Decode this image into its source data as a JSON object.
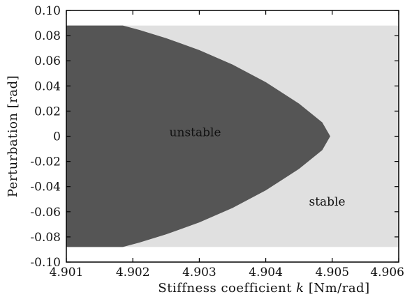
{
  "chart_data": {
    "type": "area",
    "xlabel_parts": {
      "pre": "Stiffness coefficient ",
      "var": "k",
      "post": " [Nm/rad]"
    },
    "ylabel": "Perturbation  [rad]",
    "xlim": [
      4.901,
      4.906
    ],
    "ylim": [
      -0.1,
      0.1
    ],
    "x_ticks": [
      4.901,
      4.902,
      4.903,
      4.904,
      4.905,
      4.906
    ],
    "x_tick_labels": [
      "4.901",
      "4.902",
      "4.903",
      "4.904",
      "4.905",
      "4.906"
    ],
    "y_ticks": [
      0.1,
      0.08,
      0.06,
      0.04,
      0.02,
      0,
      -0.02,
      -0.04,
      -0.06,
      -0.08,
      -0.1
    ],
    "y_tick_labels": [
      "0.10",
      "0.08",
      "0.06",
      "0.04",
      "0.02",
      "0",
      "-0.02",
      "-0.04",
      "-0.06",
      "-0.08",
      "-0.10"
    ],
    "grid": false,
    "stable_region": {
      "label": "stable",
      "label_pos": [
        4.90465,
        -0.055
      ],
      "y_range": [
        -0.088,
        0.088
      ],
      "x_range": [
        4.901,
        4.906
      ],
      "color": "#e0e0e0"
    },
    "unstable_region": {
      "label": "unstable",
      "label_pos": [
        4.90255,
        0.0
      ],
      "color": "#555555",
      "boundary": {
        "x": [
          4.90185,
          4.9021,
          4.9025,
          4.903,
          4.9035,
          4.904,
          4.9045,
          4.90485,
          4.90497,
          4.90485,
          4.9045,
          4.904,
          4.9035,
          4.903,
          4.9025,
          4.9021,
          4.90185
        ],
        "y": [
          0.088,
          0.0845,
          0.078,
          0.0685,
          0.057,
          0.043,
          0.026,
          0.011,
          0.0,
          -0.011,
          -0.026,
          -0.043,
          -0.057,
          -0.0685,
          -0.078,
          -0.0845,
          -0.088
        ]
      }
    }
  }
}
